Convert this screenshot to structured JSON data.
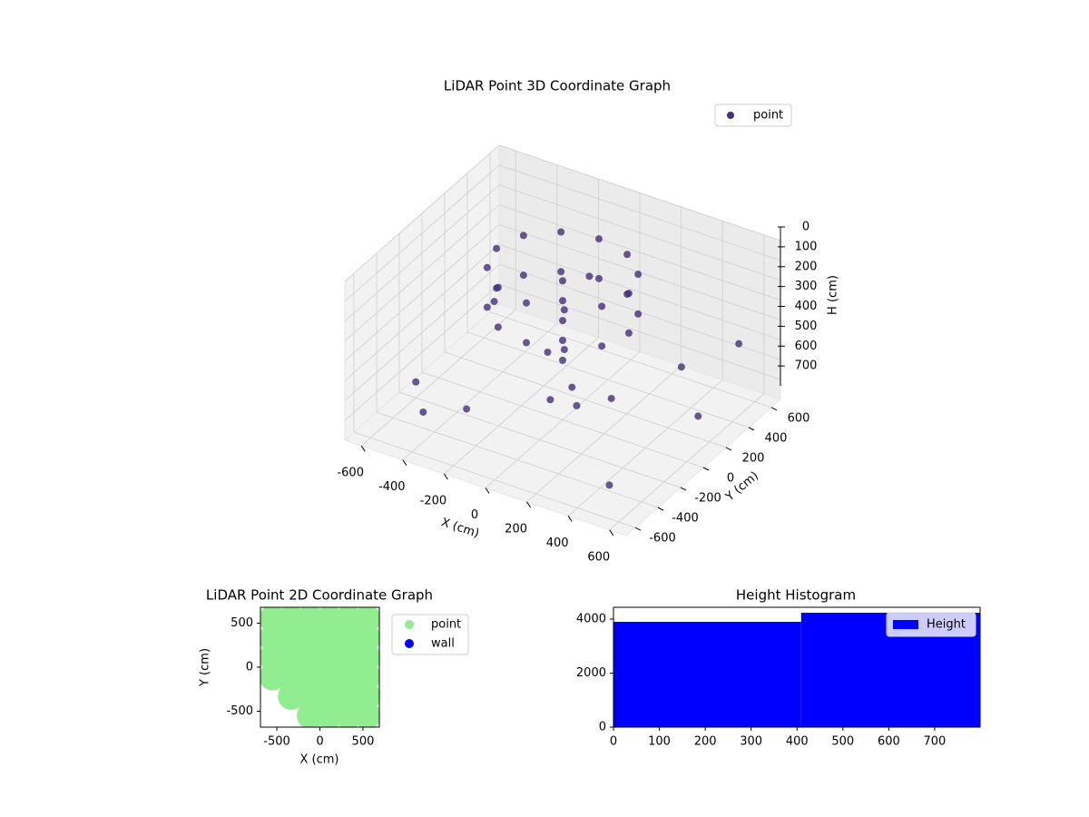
{
  "chart_data": [
    {
      "type": "scatter3d",
      "title": "LiDAR Point 3D Coordinate Graph",
      "xlabel": "X (cm)",
      "ylabel": "Y (cm)",
      "zlabel": "H (cm)",
      "legend_loc": "upper right",
      "grid": true,
      "z_inverted": true,
      "xlim": [
        -680,
        680
      ],
      "ylim": [
        -680,
        680
      ],
      "zlim": [
        0,
        800
      ],
      "xticks": [
        -600,
        -400,
        -200,
        0,
        200,
        400,
        600
      ],
      "yticks": [
        -600,
        -400,
        -200,
        0,
        200,
        400,
        600
      ],
      "zticks": [
        0,
        100,
        200,
        300,
        400,
        500,
        600,
        700
      ],
      "series": [
        {
          "name": "point",
          "color": "#472d7b",
          "x": [
            320,
            277,
            160,
            0,
            -160,
            -277,
            -320,
            -277,
            -160,
            0,
            160,
            277,
            320,
            277,
            160,
            0,
            -160,
            -277,
            -320,
            -277,
            -160,
            0,
            160,
            277,
            0,
            0,
            0,
            0,
            0,
            100,
            150,
            -100,
            50,
            -550,
            500,
            -400,
            550,
            -600,
            300,
            -200,
            600,
            -300,
            400
          ],
          "y": [
            0,
            160,
            277,
            320,
            277,
            160,
            0,
            -160,
            -277,
            -320,
            -277,
            -160,
            0,
            160,
            277,
            320,
            277,
            160,
            0,
            -160,
            -277,
            -320,
            -277,
            -160,
            0,
            0,
            0,
            0,
            0,
            -100,
            -150,
            50,
            -200,
            400,
            -500,
            -500,
            550,
            -200,
            500,
            600,
            100,
            -300,
            -300
          ],
          "z": [
            50,
            50,
            50,
            50,
            50,
            50,
            50,
            50,
            50,
            50,
            50,
            50,
            250,
            250,
            250,
            250,
            250,
            250,
            250,
            250,
            250,
            250,
            250,
            250,
            100,
            200,
            300,
            400,
            500,
            550,
            600,
            520,
            580,
            600,
            700,
            650,
            500,
            720,
            680,
            450,
            620,
            700,
            400
          ]
        }
      ]
    },
    {
      "type": "scatter",
      "title": "LiDAR Point 2D Coordinate Graph",
      "xlabel": "X (cm)",
      "ylabel": "Y (cm)",
      "legend_loc": "outside right",
      "xlim": [
        -690,
        690
      ],
      "ylim": [
        -680,
        680
      ],
      "xticks": [
        -500,
        0,
        500
      ],
      "yticks": [
        -500,
        0,
        500
      ],
      "series": [
        {
          "name": "point",
          "color": "#90ee90",
          "x": [
            -550,
            -550,
            -550,
            -550,
            -330,
            -330,
            -330,
            -330,
            -330,
            -110,
            -110,
            -110,
            -110,
            -110,
            -110,
            110,
            110,
            110,
            110,
            110,
            110,
            330,
            330,
            330,
            330,
            330,
            330,
            550,
            550,
            550,
            550,
            550,
            550
          ],
          "y": [
            -110,
            110,
            330,
            550,
            -330,
            -110,
            110,
            330,
            550,
            -550,
            -330,
            -110,
            110,
            330,
            550,
            -550,
            -330,
            -110,
            110,
            330,
            550,
            -550,
            -330,
            -110,
            110,
            330,
            550,
            -550,
            -330,
            -110,
            110,
            330,
            550
          ]
        },
        {
          "name": "wall",
          "color": "#0000ff",
          "x": [],
          "y": []
        }
      ]
    },
    {
      "type": "histogram",
      "title": "Height Histogram",
      "legend_loc": "upper right",
      "xlim": [
        0,
        799
      ],
      "ylim": [
        0,
        4437
      ],
      "xticks": [
        0,
        100,
        200,
        300,
        400,
        500,
        600,
        700
      ],
      "yticks": [
        0,
        2000,
        4000
      ],
      "series": [
        {
          "name": "Height",
          "color": "#0000ff",
          "bins": [
            0,
            409,
            799
          ],
          "values": [
            3900,
            4235
          ]
        }
      ]
    }
  ]
}
